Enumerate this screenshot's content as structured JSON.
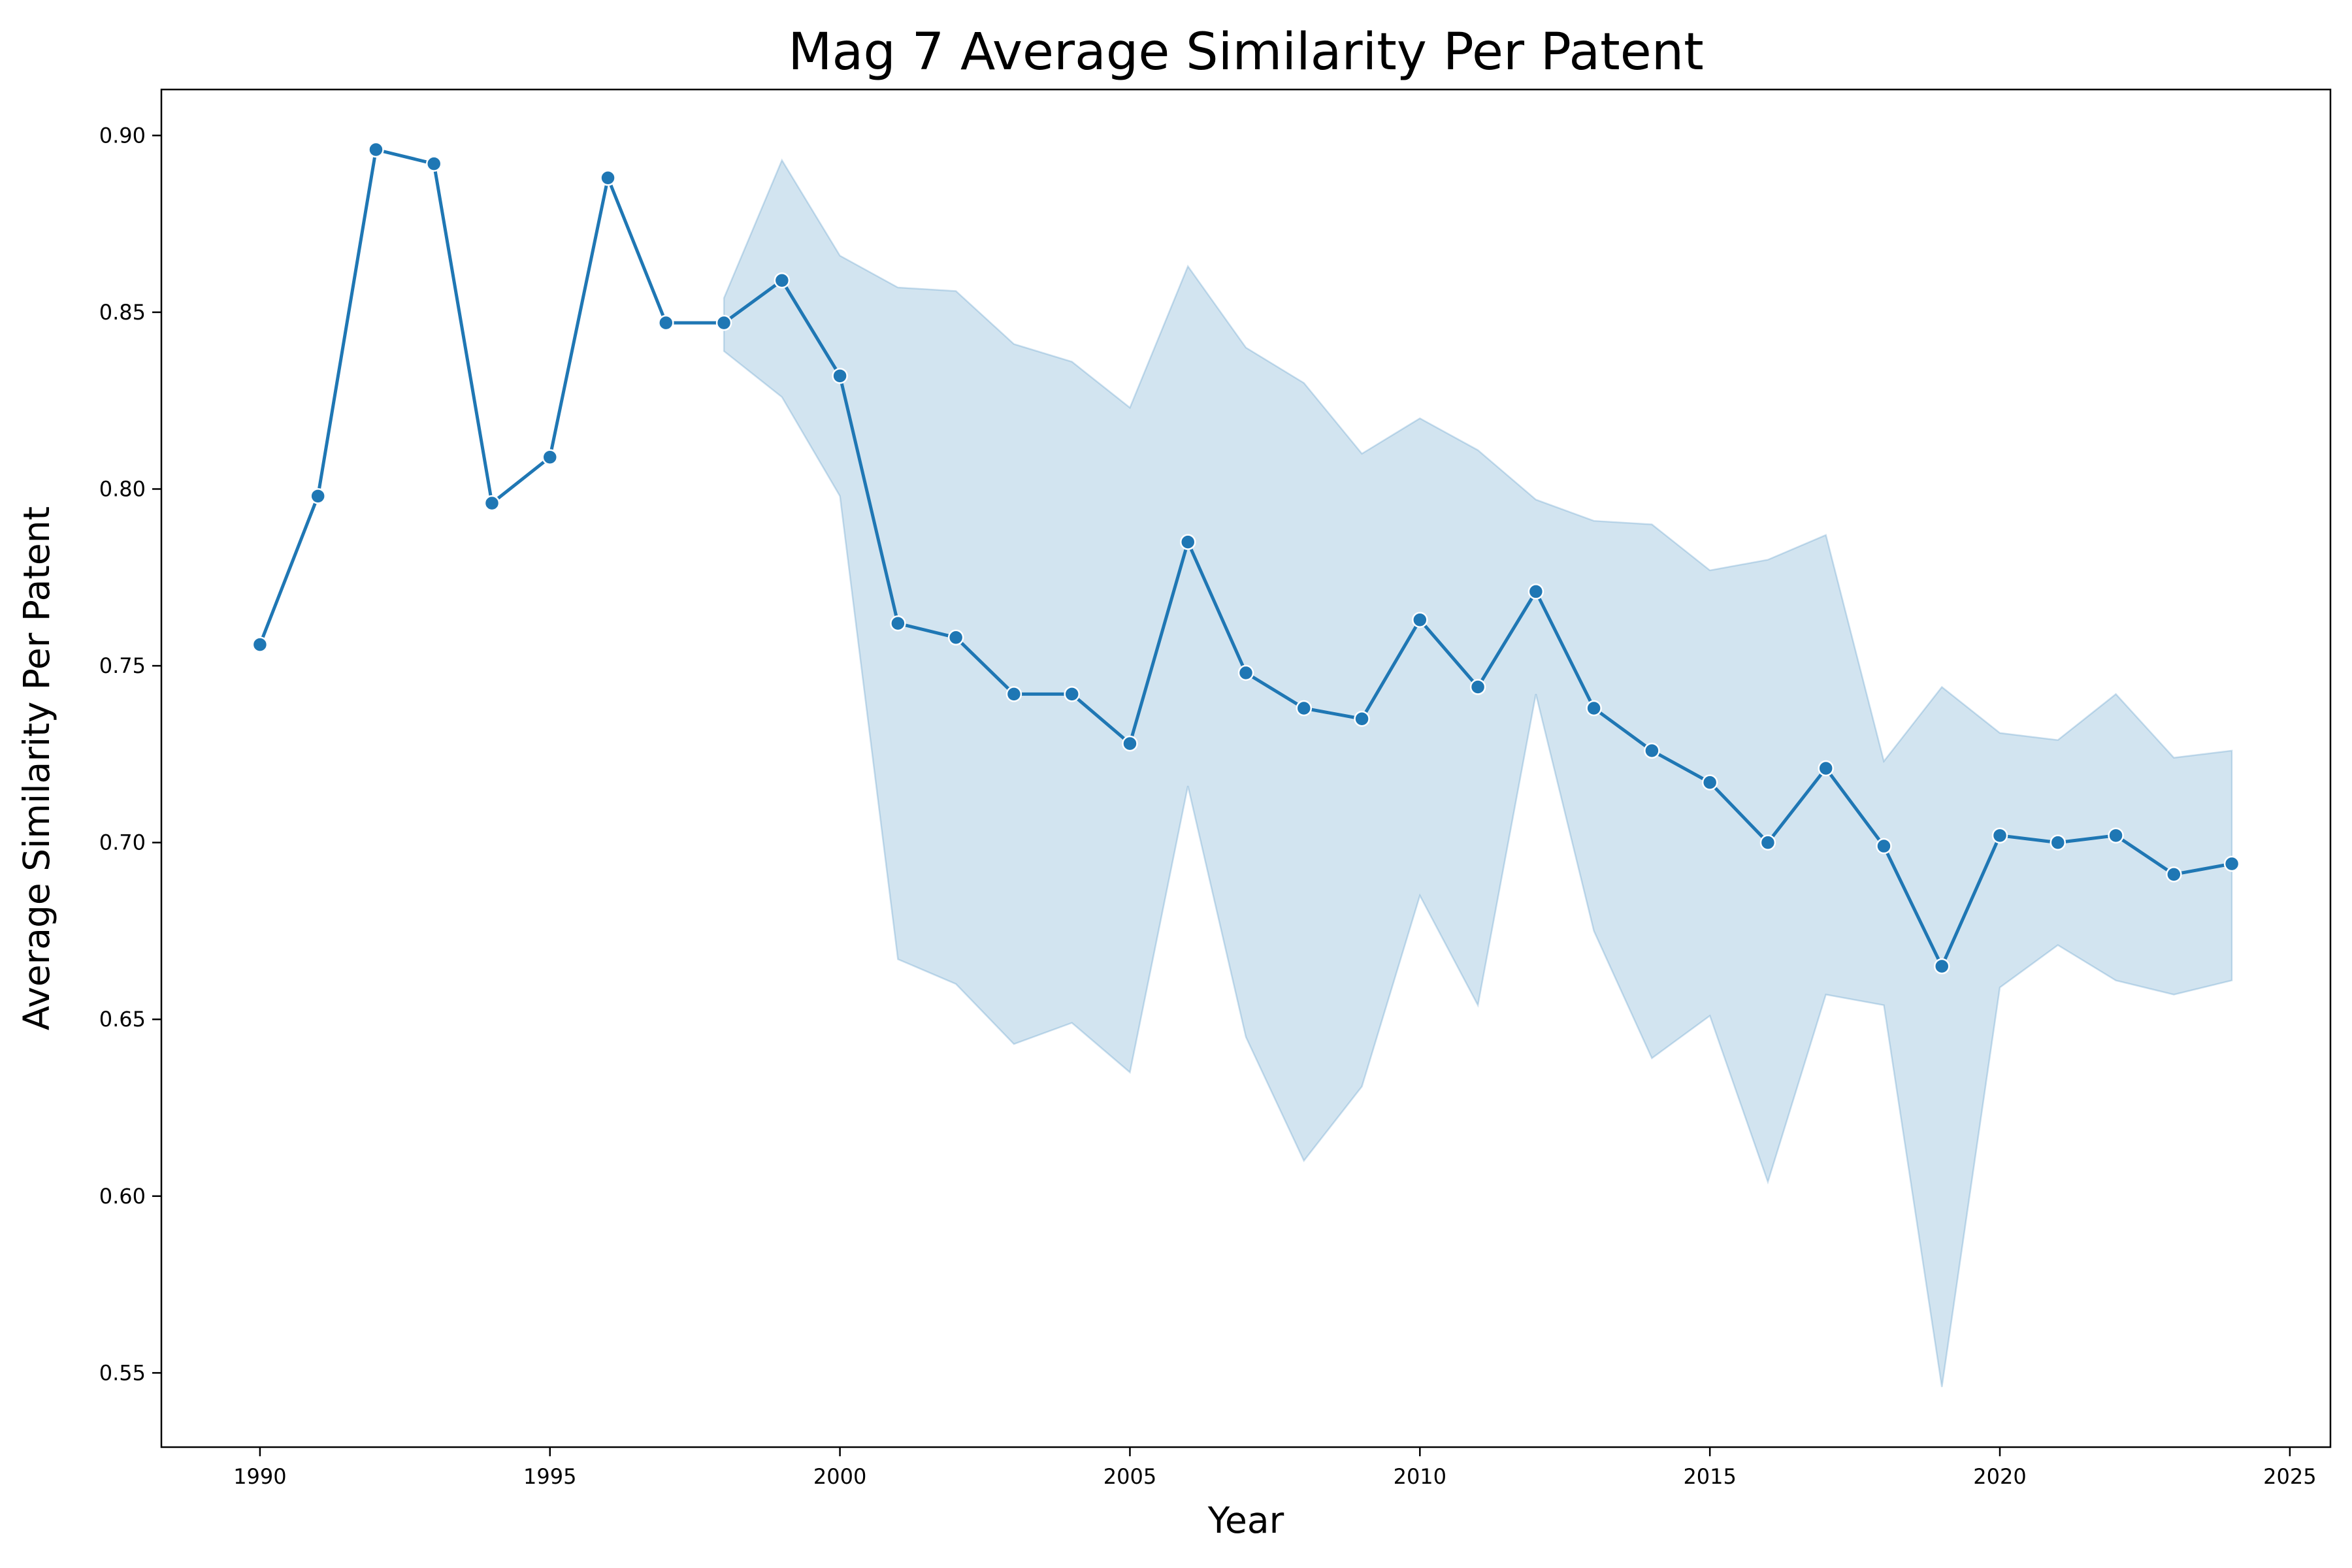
{
  "colors": {
    "line": "#1f77b4",
    "band": "#1f77b4",
    "marker_edge": "#ffffff",
    "axes": "#000000"
  },
  "chart_data": {
    "type": "line",
    "title": "Mag 7 Average Similarity Per Patent",
    "xlabel": "Year",
    "ylabel": "Average Similarity Per Patent",
    "xlim": [
      1988.3,
      2025.7
    ],
    "ylim": [
      0.529,
      0.913
    ],
    "xticks": [
      1990,
      1995,
      2000,
      2005,
      2010,
      2015,
      2020,
      2025
    ],
    "yticks": [
      0.55,
      0.6,
      0.65,
      0.7,
      0.75,
      0.8,
      0.85,
      0.9
    ],
    "grid": false,
    "legend": "none",
    "series": [
      {
        "x": [
          1990,
          1991,
          1992,
          1993,
          1994,
          1995,
          1996,
          1997,
          1998,
          1999,
          2000,
          2001,
          2002,
          2003,
          2004,
          2005,
          2006,
          2007,
          2008,
          2009,
          2010,
          2011,
          2012,
          2013,
          2014,
          2015,
          2016,
          2017,
          2018,
          2019,
          2020,
          2021,
          2022,
          2023,
          2024
        ],
        "y": [
          0.756,
          0.798,
          0.896,
          0.892,
          0.796,
          0.809,
          0.888,
          0.847,
          0.847,
          0.859,
          0.832,
          0.762,
          0.758,
          0.742,
          0.742,
          0.728,
          0.785,
          0.748,
          0.738,
          0.735,
          0.763,
          0.744,
          0.771,
          0.738,
          0.726,
          0.717,
          0.7,
          0.721,
          0.699,
          0.665,
          0.702,
          0.7,
          0.702,
          0.691,
          0.694
        ]
      }
    ],
    "confidence_band": {
      "x": [
        1998,
        1999,
        2000,
        2001,
        2002,
        2003,
        2004,
        2005,
        2006,
        2007,
        2008,
        2009,
        2010,
        2011,
        2012,
        2013,
        2014,
        2015,
        2016,
        2017,
        2018,
        2019,
        2020,
        2021,
        2022,
        2023,
        2024
      ],
      "upper": [
        0.854,
        0.893,
        0.866,
        0.857,
        0.856,
        0.841,
        0.836,
        0.823,
        0.863,
        0.84,
        0.83,
        0.81,
        0.82,
        0.811,
        0.797,
        0.791,
        0.79,
        0.777,
        0.78,
        0.787,
        0.723,
        0.744,
        0.731,
        0.729,
        0.742,
        0.724,
        0.726
      ],
      "lower": [
        0.839,
        0.826,
        0.798,
        0.667,
        0.66,
        0.643,
        0.649,
        0.635,
        0.716,
        0.645,
        0.61,
        0.631,
        0.685,
        0.654,
        0.742,
        0.675,
        0.639,
        0.651,
        0.604,
        0.657,
        0.654,
        0.546,
        0.659,
        0.671,
        0.661,
        0.657,
        0.661
      ]
    }
  }
}
